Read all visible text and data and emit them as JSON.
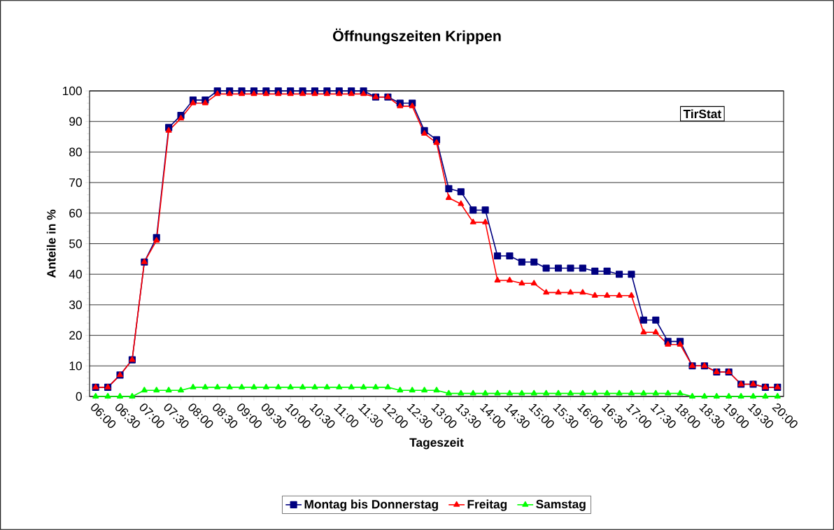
{
  "chart_data": {
    "type": "line",
    "title": "Öffnungszeiten Krippen",
    "xlabel": "Tageszeit",
    "ylabel": "Anteile in %",
    "categories": [
      "06:00",
      null,
      "06:30",
      null,
      "07:00",
      null,
      "07:30",
      null,
      "08:00",
      null,
      "08:30",
      null,
      "09:00",
      null,
      "09:30",
      null,
      "10:00",
      null,
      "10:30",
      null,
      "11:00",
      null,
      "11:30",
      null,
      "12:00",
      null,
      "12:30",
      null,
      "13:00",
      null,
      "13:30",
      null,
      "14:00",
      null,
      "14:30",
      null,
      "15:00",
      null,
      "15:30",
      null,
      "16:00",
      null,
      "16:30",
      null,
      "17:00",
      null,
      "17:30",
      null,
      "18:00",
      null,
      "18:30",
      null,
      "19:00",
      null,
      "19:30",
      null,
      "20:00"
    ],
    "series": [
      {
        "name": "Montag bis Donnerstag",
        "color": "#000080",
        "marker": "square",
        "values": [
          3,
          3,
          7,
          12,
          44,
          52,
          88,
          92,
          97,
          97,
          100,
          100,
          100,
          100,
          100,
          100,
          100,
          100,
          100,
          100,
          100,
          100,
          100,
          98,
          98,
          96,
          96,
          87,
          84,
          68,
          67,
          61,
          61,
          46,
          46,
          44,
          44,
          42,
          42,
          42,
          42,
          41,
          41,
          40,
          40,
          25,
          25,
          18,
          18,
          10,
          10,
          8,
          8,
          4,
          4,
          3,
          3
        ]
      },
      {
        "name": "Freitag",
        "color": "#ff0000",
        "marker": "triangle",
        "values": [
          3,
          3,
          7,
          12,
          44,
          51,
          87,
          91,
          96,
          96,
          99,
          99,
          99,
          99,
          99,
          99,
          99,
          99,
          99,
          99,
          99,
          99,
          99,
          98,
          98,
          95,
          95,
          86,
          83,
          65,
          63,
          57,
          57,
          38,
          38,
          37,
          37,
          34,
          34,
          34,
          34,
          33,
          33,
          33,
          33,
          21,
          21,
          17,
          17,
          10,
          10,
          8,
          8,
          4,
          4,
          3,
          3
        ]
      },
      {
        "name": "Samstag",
        "color": "#00ff00",
        "marker": "triangle",
        "values": [
          0,
          0,
          0,
          0,
          2,
          2,
          2,
          2,
          3,
          3,
          3,
          3,
          3,
          3,
          3,
          3,
          3,
          3,
          3,
          3,
          3,
          3,
          3,
          3,
          3,
          2,
          2,
          2,
          2,
          1,
          1,
          1,
          1,
          1,
          1,
          1,
          1,
          1,
          1,
          1,
          1,
          1,
          1,
          1,
          1,
          1,
          1,
          1,
          1,
          0,
          0,
          0,
          0,
          0,
          0,
          0,
          0
        ]
      }
    ],
    "ylim": [
      0,
      100
    ],
    "yticks": [
      0,
      10,
      20,
      30,
      40,
      50,
      60,
      70,
      80,
      90,
      100
    ],
    "grid": "y",
    "legend": "bottom",
    "annotations": [
      "TirStat"
    ]
  }
}
